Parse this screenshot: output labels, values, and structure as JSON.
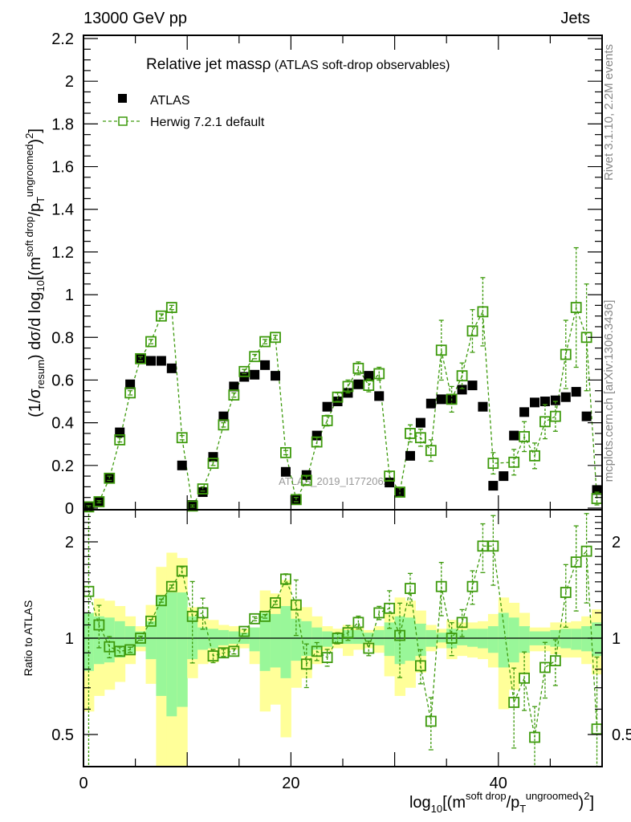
{
  "header": {
    "energy_label": "13000 GeV pp",
    "process_label": "Jets",
    "side_label_top": "Rivet 3.1.10,  2.2M events",
    "side_label_bottom": "mcplots.cern.ch [arXiv:1306.3436]",
    "watermark": "ATLAS_2019_I1772062"
  },
  "colors": {
    "atlas": "#000000",
    "herwig": "#3d9a0c",
    "band_inner": "#99f799",
    "band_outer": "#ffff99"
  },
  "chart_data": [
    {
      "type": "scatter",
      "title_main": "Relative jet mass",
      "title_symbol": "ρ",
      "title_sub": " (ATLAS soft-drop observables)",
      "ylabel": {
        "p1": "(1/σ",
        "sub1": "resum",
        "p2": ") dσ/d log",
        "sub2": "10",
        "p3": "[(m",
        "sup1": "soft drop",
        "p4": "/p",
        "sub3": "T",
        "sup2": "ungroomed",
        "p5": ")",
        "sup3": "2",
        "p6": "]"
      },
      "xlim": [
        0,
        50
      ],
      "ylim": [
        0,
        2.2
      ],
      "ytick_labels": [
        "0",
        "0.2",
        "0.4",
        "0.6",
        "0.8",
        "1",
        "1.2",
        "1.4",
        "1.6",
        "1.8",
        "2",
        "2.2"
      ],
      "legend": {
        "placement": "top-left",
        "atlas": "ATLAS",
        "herwig": "Herwig 7.2.1 default"
      },
      "bins": 50,
      "series": [
        {
          "name": "ATLAS",
          "values": [
            0.004,
            0.03,
            0.14,
            0.355,
            0.58,
            0.7,
            0.69,
            0.69,
            0.655,
            0.2,
            0.015,
            0.075,
            0.24,
            0.43,
            0.57,
            0.615,
            0.625,
            0.67,
            0.62,
            0.17,
            0.04,
            0.155,
            0.34,
            0.475,
            0.5,
            0.54,
            0.58,
            0.62,
            0.525,
            0.12,
            0.075,
            0.245,
            0.4,
            0.49,
            0.51,
            0.51,
            0.555,
            0.575,
            0.475,
            0.105,
            0.15,
            0.34,
            0.45,
            0.495,
            0.5,
            0.505,
            0.52,
            0.545,
            0.43,
            0.085
          ]
        },
        {
          "name": "Herwig 7.2.1 default",
          "values": [
            0.006,
            0.03,
            0.14,
            0.32,
            0.54,
            0.7,
            0.78,
            0.9,
            0.94,
            0.33,
            0.01,
            0.09,
            0.21,
            0.39,
            0.53,
            0.64,
            0.71,
            0.78,
            0.8,
            0.26,
            0.04,
            0.13,
            0.31,
            0.41,
            0.52,
            0.57,
            0.655,
            0.575,
            0.63,
            0.15,
            0.075,
            0.35,
            0.33,
            0.27,
            0.74,
            0.51,
            0.62,
            0.83,
            0.92,
            0.21,
            null,
            0.215,
            0.335,
            0.245,
            0.405,
            0.43,
            0.72,
            0.94,
            0.8,
            0.045
          ],
          "errors": [
            0.005,
            0.005,
            0.01,
            0.01,
            0.01,
            0.01,
            0.01,
            0.01,
            0.01,
            0.01,
            0.005,
            0.01,
            0.01,
            0.01,
            0.01,
            0.01,
            0.01,
            0.01,
            0.01,
            0.01,
            0.01,
            0.02,
            0.02,
            0.025,
            0.02,
            0.03,
            0.03,
            0.03,
            0.03,
            0.02,
            0.02,
            0.04,
            0.04,
            0.05,
            0.14,
            0.06,
            0.06,
            0.1,
            0.16,
            0.05,
            null,
            0.06,
            0.07,
            0.06,
            0.08,
            0.07,
            0.16,
            0.28,
            0.25,
            0.03
          ]
        }
      ]
    },
    {
      "type": "scatter",
      "ylabel": "Ratio to ATLAS",
      "xlabel": {
        "p1": "log",
        "sub1": "10",
        "p2": "[(m",
        "sup1": "soft drop",
        "p3": "/p",
        "sub2": "T",
        "sup2": "ungroomed",
        "p4": ")",
        "sup3": "2",
        "p5": "]"
      },
      "yscale": "log",
      "ylim": [
        0.4,
        2.5
      ],
      "ytick_labels": {
        "0.5": "0.5",
        "1": "1",
        "2": "2"
      },
      "xtick_labels": {
        "0": "0",
        "20": "20",
        "40": "40"
      },
      "ratio_values": [
        1.4,
        1.1,
        0.94,
        0.91,
        0.92,
        1.0,
        1.13,
        1.31,
        1.45,
        1.62,
        1.17,
        1.2,
        0.88,
        0.9,
        0.91,
        1.05,
        1.15,
        1.17,
        1.29,
        1.53,
        1.27,
        0.83,
        0.91,
        0.87,
        1.0,
        1.04,
        1.12,
        0.93,
        1.2,
        1.24,
        1.02,
        1.43,
        0.82,
        0.55,
        1.45,
        1.0,
        1.12,
        1.45,
        1.94,
        1.94,
        null,
        0.63,
        0.75,
        0.49,
        0.81,
        0.85,
        1.39,
        1.73,
        1.87,
        0.52
      ],
      "band_inner_hi": [
        1.2,
        1.17,
        1.16,
        1.13,
        1.09,
        1.05,
        1.13,
        1.35,
        1.39,
        1.39,
        1.17,
        1.08,
        1.07,
        1.06,
        1.05,
        1.04,
        1.08,
        1.2,
        1.19,
        1.26,
        1.15,
        1.13,
        1.08,
        1.05,
        1.04,
        1.06,
        1.06,
        1.04,
        1.06,
        1.12,
        1.17,
        1.16,
        1.11,
        1.06,
        1.04,
        1.07,
        1.06,
        1.07,
        1.07,
        1.09,
        1.2,
        1.16,
        1.09,
        1.05,
        1.05,
        1.06,
        1.07,
        1.07,
        1.09,
        1.12
      ],
      "band_inner_lo": [
        0.79,
        0.83,
        0.84,
        0.87,
        0.89,
        0.94,
        0.86,
        0.66,
        0.57,
        0.61,
        0.86,
        0.92,
        0.93,
        0.95,
        0.96,
        0.96,
        0.91,
        0.79,
        0.81,
        0.75,
        0.85,
        0.88,
        0.92,
        0.94,
        0.96,
        0.96,
        0.96,
        0.97,
        0.95,
        0.88,
        0.83,
        0.85,
        0.88,
        0.94,
        0.97,
        0.93,
        0.95,
        0.94,
        0.93,
        0.9,
        0.81,
        0.84,
        0.9,
        0.95,
        0.95,
        0.94,
        0.93,
        0.92,
        0.91,
        0.88
      ],
      "band_outer_hi": [
        1.2,
        1.33,
        1.31,
        1.26,
        1.17,
        1.09,
        1.27,
        1.67,
        1.85,
        1.78,
        1.25,
        1.15,
        1.14,
        1.1,
        1.09,
        1.07,
        1.08,
        1.41,
        1.38,
        1.52,
        1.31,
        1.25,
        1.17,
        1.09,
        1.07,
        1.1,
        1.08,
        1.06,
        1.09,
        1.2,
        1.34,
        1.31,
        1.22,
        1.1,
        1.07,
        1.14,
        1.12,
        1.12,
        1.13,
        1.19,
        1.34,
        1.29,
        1.2,
        1.08,
        1.08,
        1.12,
        1.12,
        1.13,
        1.17,
        1.23
      ],
      "band_outer_lo": [
        0.59,
        0.66,
        0.69,
        0.73,
        0.83,
        0.91,
        0.72,
        0.35,
        0.35,
        0.35,
        0.75,
        0.83,
        0.84,
        0.88,
        0.92,
        0.93,
        0.83,
        0.59,
        0.62,
        0.49,
        0.7,
        0.75,
        0.83,
        0.91,
        0.93,
        0.88,
        0.92,
        0.93,
        0.9,
        0.76,
        0.66,
        0.7,
        0.78,
        0.91,
        0.93,
        0.86,
        0.88,
        0.87,
        0.86,
        0.81,
        0.6,
        0.69,
        0.77,
        0.91,
        0.91,
        0.89,
        0.87,
        0.87,
        0.83,
        0.77
      ]
    }
  ]
}
